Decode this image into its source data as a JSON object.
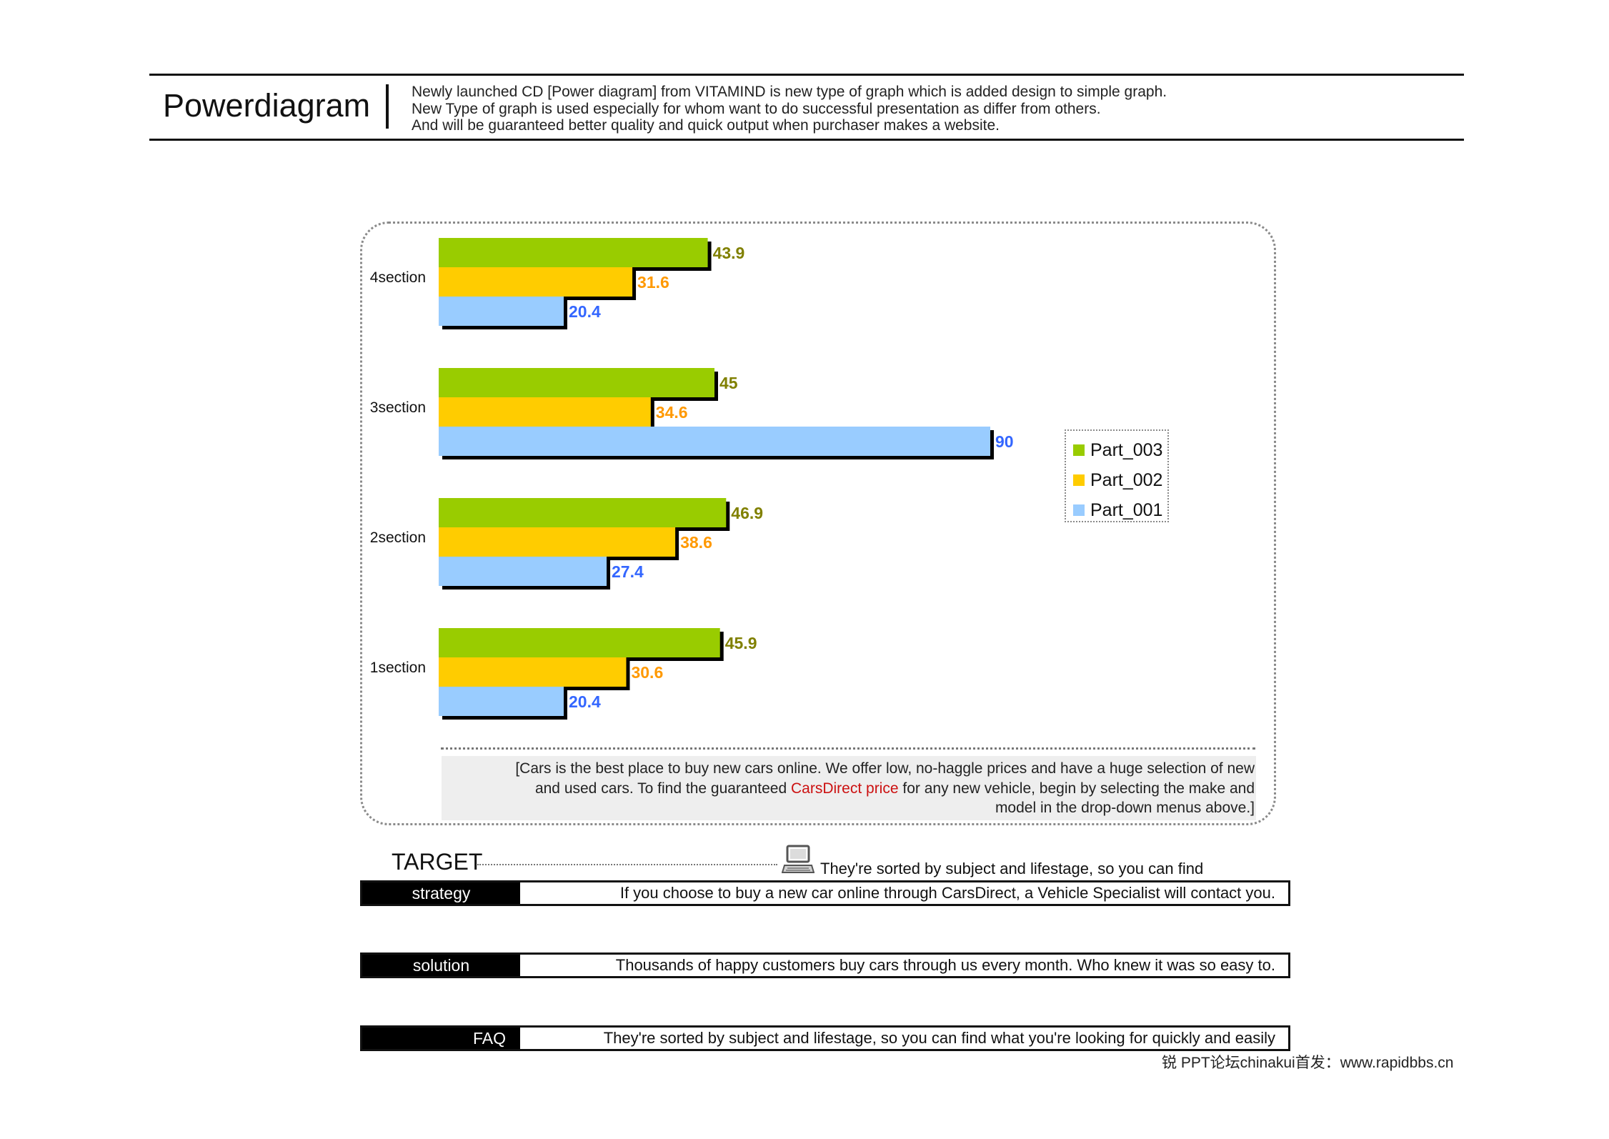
{
  "header": {
    "title": "Powerdiagram",
    "description": [
      "Newly launched CD [Power diagram] from VITAMIND is new type of graph which is added design to simple graph.",
      "New Type of graph is used especially for whom want to do successful presentation as differ from others.",
      "And will be guaranteed better quality and quick output when purchaser makes a website."
    ]
  },
  "chart_data": {
    "type": "bar",
    "orientation": "horizontal",
    "categories": [
      "4section",
      "3section",
      "2section",
      "1section"
    ],
    "series": [
      {
        "name": "Part_003",
        "values": [
          43.9,
          45,
          46.9,
          45.9
        ],
        "color": "#99cc00",
        "label_color": "#808000"
      },
      {
        "name": "Part_002",
        "values": [
          31.6,
          34.6,
          38.6,
          30.6
        ],
        "color": "#ffcc00",
        "label_color": "#ff9900"
      },
      {
        "name": "Part_001",
        "values": [
          20.4,
          90,
          27.4,
          20.4
        ],
        "color": "#99ccff",
        "label_color": "#3366ff"
      }
    ],
    "xlim": [
      0,
      90
    ],
    "grid": false,
    "legend_position": "right"
  },
  "legend": {
    "items": [
      {
        "label": "Part_003",
        "color": "#99cc00"
      },
      {
        "label": "Part_002",
        "color": "#ffcc00"
      },
      {
        "label": "Part_001",
        "color": "#99ccff"
      }
    ]
  },
  "note": {
    "line1": "[Cars is the best place to buy new cars online. We offer low, no-haggle prices and have a huge selection of new",
    "line2_before": "and used cars. To find the guaranteed ",
    "line2_highlight": "CarsDirect price",
    "line2_after": " for any new vehicle, begin by selecting the make and",
    "line3": "model in the drop-down menus above.]",
    "highlight_color": "#cc1111"
  },
  "target": {
    "title": "TARGET",
    "icon": "computer-icon",
    "description": "They're sorted by subject and lifestage, so you can find"
  },
  "rows": [
    {
      "label": "strategy",
      "text": "If you choose to buy a new car online through CarsDirect, a Vehicle Specialist will contact you."
    },
    {
      "label": "solution",
      "text": "Thousands of happy customers buy cars through us every month. Who knew it was so easy to."
    },
    {
      "label": "FAQ",
      "text": "They're sorted by subject and lifestage, so you can find what you're looking for quickly and easily"
    }
  ],
  "footer": {
    "text": "锐  PPT论坛chinakui首发：www.rapidbbs.cn"
  }
}
